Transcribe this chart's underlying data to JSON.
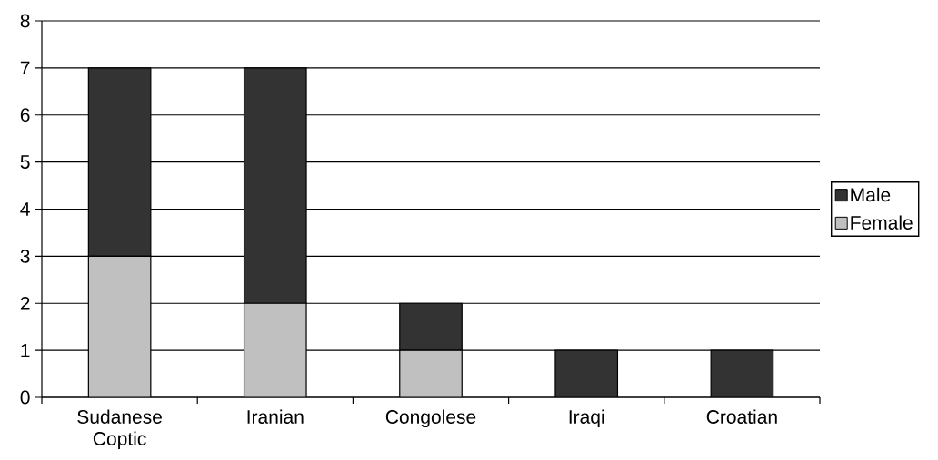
{
  "chart_data": {
    "type": "bar",
    "stacked": true,
    "categories": [
      "Sudanese Coptic",
      "Iranian",
      "Congolese",
      "Iraqi",
      "Croatian"
    ],
    "series": [
      {
        "name": "Female",
        "color": "#c0c0c0",
        "values": [
          3,
          2,
          1,
          0,
          0
        ]
      },
      {
        "name": "Male",
        "color": "#333333",
        "values": [
          4,
          5,
          1,
          1,
          1
        ]
      }
    ],
    "ylim": [
      0,
      8
    ],
    "yticks": [
      0,
      1,
      2,
      3,
      4,
      5,
      6,
      7,
      8
    ],
    "grid": "y",
    "legend": "right"
  }
}
